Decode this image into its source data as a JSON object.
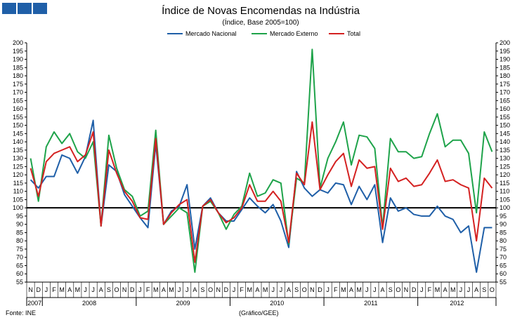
{
  "chart_data": {
    "type": "line",
    "title": "Índice de Novas Encomendas na Indústria",
    "subtitle": "(Índice,  Base 2005=100)",
    "source": "Fonte: INE",
    "credit": "(Gráfico/GEE)",
    "ylim": [
      55,
      200
    ],
    "ytick_step": 5,
    "reference_line": 100,
    "grid": false,
    "legend_position": "top",
    "month_labels": [
      "N",
      "D",
      "J",
      "F",
      "M",
      "A",
      "M",
      "J",
      "J",
      "A",
      "S",
      "O",
      "N",
      "D",
      "J",
      "F",
      "M",
      "A",
      "M",
      "J",
      "J",
      "A",
      "S",
      "O",
      "N",
      "D",
      "J",
      "F",
      "M",
      "A",
      "M",
      "J",
      "J",
      "A",
      "S",
      "O",
      "N",
      "D",
      "J",
      "F",
      "M",
      "A",
      "M",
      "J",
      "J",
      "A",
      "S",
      "O",
      "N",
      "D",
      "J",
      "F",
      "M",
      "A",
      "M",
      "J",
      "J",
      "A",
      "S",
      "O"
    ],
    "years": [
      {
        "label": "2007",
        "start": 0,
        "count": 2
      },
      {
        "label": "2008",
        "start": 2,
        "count": 12
      },
      {
        "label": "2009",
        "start": 14,
        "count": 12
      },
      {
        "label": "2010",
        "start": 26,
        "count": 12
      },
      {
        "label": "2011",
        "start": 38,
        "count": 12
      },
      {
        "label": "2012",
        "start": 50,
        "count": 10
      }
    ],
    "series": [
      {
        "name": "Mercado Nacional",
        "color": "#1f5fa8",
        "values": [
          117,
          112,
          119,
          119,
          132,
          130,
          121,
          131,
          153,
          89,
          126,
          122,
          108,
          101,
          94,
          88,
          139,
          90,
          98,
          101,
          114,
          75,
          101,
          106,
          97,
          92,
          92,
          99,
          106,
          101,
          97,
          102,
          92,
          76,
          122,
          112,
          107,
          111,
          109,
          115,
          114,
          102,
          113,
          105,
          114,
          79,
          106,
          98,
          100,
          96,
          95,
          95,
          101,
          95,
          93,
          85,
          89,
          61,
          88,
          88
        ]
      },
      {
        "name": "Mercado Externo",
        "color": "#1ea34a",
        "values": [
          130,
          104,
          137,
          146,
          139,
          145,
          134,
          130,
          140,
          89,
          144,
          124,
          111,
          107,
          95,
          98,
          147,
          90,
          95,
          100,
          97,
          61,
          101,
          104,
          97,
          87,
          96,
          101,
          121,
          107,
          109,
          117,
          115,
          78,
          118,
          115,
          196,
          112,
          130,
          140,
          152,
          126,
          144,
          143,
          136,
          88,
          142,
          134,
          134,
          130,
          131,
          145,
          157,
          137,
          141,
          141,
          133,
          97,
          146,
          134
        ]
      },
      {
        "name": "Total",
        "color": "#d42121",
        "values": [
          124,
          107,
          128,
          133,
          135,
          137,
          128,
          132,
          146,
          89,
          135,
          121,
          110,
          104,
          94,
          93,
          142,
          90,
          97,
          102,
          105,
          67,
          101,
          105,
          97,
          91,
          94,
          100,
          114,
          104,
          104,
          110,
          104,
          79,
          121,
          114,
          152,
          111,
          120,
          128,
          133,
          113,
          129,
          124,
          125,
          87,
          124,
          116,
          118,
          113,
          114,
          121,
          129,
          116,
          117,
          114,
          112,
          80,
          118,
          112
        ]
      }
    ]
  }
}
